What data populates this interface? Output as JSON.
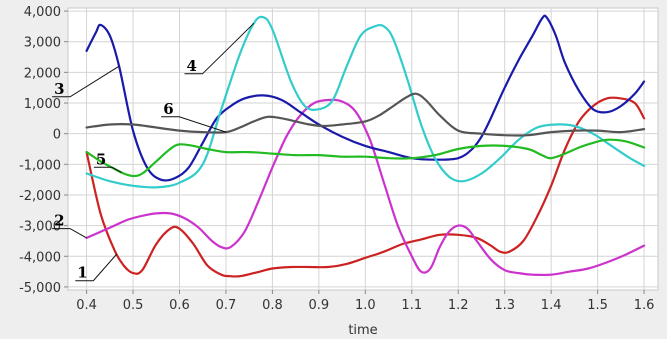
{
  "chart_data": {
    "type": "line",
    "title": "",
    "xlabel": "time",
    "ylabel": "",
    "xlim": [
      0.36,
      1.63
    ],
    "ylim": [
      -5100,
      4100
    ],
    "grid": true,
    "x_ticks": [
      "0.4",
      "0.5",
      "0.6",
      "0.7",
      "0.8",
      "0.9",
      "1.0",
      "1.1",
      "1.2",
      "1.3",
      "1.4",
      "1.5",
      "1.6"
    ],
    "y_ticks": [
      "4,000",
      "3,000",
      "2,000",
      "1,000",
      "0",
      "-1,000",
      "-2,000",
      "-3,000",
      "-4,000",
      "-5,000"
    ],
    "series": [
      {
        "name": "1",
        "color": "#cc2222",
        "x": [
          0.4,
          0.43,
          0.46,
          0.48,
          0.5,
          0.52,
          0.55,
          0.58,
          0.6,
          0.63,
          0.66,
          0.69,
          0.71,
          0.73,
          0.76,
          0.8,
          0.84,
          0.88,
          0.92,
          0.96,
          1.0,
          1.04,
          1.08,
          1.12,
          1.16,
          1.2,
          1.24,
          1.27,
          1.29,
          1.31,
          1.34,
          1.37,
          1.4,
          1.43,
          1.46,
          1.49,
          1.52,
          1.55,
          1.58,
          1.6
        ],
        "y": [
          -600,
          -2600,
          -3800,
          -4300,
          -4550,
          -4450,
          -3600,
          -3100,
          -3100,
          -3600,
          -4300,
          -4600,
          -4650,
          -4650,
          -4550,
          -4400,
          -4350,
          -4350,
          -4350,
          -4250,
          -4050,
          -3850,
          -3600,
          -3450,
          -3300,
          -3300,
          -3400,
          -3650,
          -3850,
          -3850,
          -3500,
          -2700,
          -1700,
          -500,
          400,
          900,
          1150,
          1150,
          1000,
          500
        ]
      },
      {
        "name": "2",
        "color": "#cc33cc",
        "x": [
          0.4,
          0.43,
          0.46,
          0.49,
          0.52,
          0.55,
          0.58,
          0.61,
          0.64,
          0.67,
          0.69,
          0.71,
          0.74,
          0.77,
          0.8,
          0.83,
          0.86,
          0.89,
          0.92,
          0.95,
          0.98,
          1.01,
          1.04,
          1.07,
          1.1,
          1.12,
          1.14,
          1.16,
          1.18,
          1.2,
          1.22,
          1.24,
          1.27,
          1.3,
          1.33,
          1.36,
          1.4,
          1.44,
          1.48,
          1.52,
          1.56,
          1.6
        ],
        "y": [
          -3400,
          -3200,
          -3000,
          -2800,
          -2680,
          -2600,
          -2600,
          -2750,
          -3050,
          -3500,
          -3700,
          -3700,
          -3200,
          -2200,
          -1100,
          -100,
          600,
          1000,
          1100,
          1050,
          700,
          -200,
          -1600,
          -3000,
          -4000,
          -4500,
          -4400,
          -3700,
          -3200,
          -3000,
          -3100,
          -3500,
          -4100,
          -4450,
          -4550,
          -4600,
          -4600,
          -4500,
          -4400,
          -4200,
          -3950,
          -3650
        ]
      },
      {
        "name": "3",
        "color": "#1a1aaa",
        "x": [
          0.4,
          0.42,
          0.43,
          0.45,
          0.47,
          0.5,
          0.53,
          0.56,
          0.59,
          0.62,
          0.65,
          0.68,
          0.71,
          0.74,
          0.78,
          0.82,
          0.86,
          0.9,
          0.95,
          1.0,
          1.05,
          1.1,
          1.15,
          1.2,
          1.23,
          1.25,
          1.27,
          1.3,
          1.33,
          1.36,
          1.38,
          1.39,
          1.41,
          1.43,
          1.46,
          1.49,
          1.52,
          1.55,
          1.58,
          1.6
        ],
        "y": [
          2700,
          3300,
          3550,
          3200,
          2200,
          100,
          -1100,
          -1500,
          -1450,
          -1100,
          -300,
          500,
          900,
          1150,
          1250,
          1100,
          700,
          300,
          -100,
          -400,
          -600,
          -800,
          -850,
          -800,
          -500,
          -100,
          500,
          1500,
          2400,
          3200,
          3750,
          3800,
          3200,
          2300,
          1400,
          800,
          700,
          900,
          1300,
          1700
        ]
      },
      {
        "name": "4",
        "color": "#33cccc",
        "x": [
          0.4,
          0.45,
          0.5,
          0.55,
          0.6,
          0.65,
          0.69,
          0.73,
          0.76,
          0.78,
          0.8,
          0.84,
          0.87,
          0.9,
          0.93,
          0.96,
          0.99,
          1.02,
          1.04,
          1.06,
          1.09,
          1.12,
          1.15,
          1.18,
          1.21,
          1.25,
          1.29,
          1.33,
          1.37,
          1.41,
          1.45,
          1.49,
          1.53,
          1.57,
          1.6
        ],
        "y": [
          -1300,
          -1550,
          -1700,
          -1750,
          -1600,
          -1000,
          800,
          2600,
          3600,
          3800,
          3400,
          1700,
          900,
          800,
          1100,
          2200,
          3200,
          3500,
          3500,
          3100,
          1800,
          300,
          -800,
          -1400,
          -1550,
          -1300,
          -800,
          -200,
          200,
          300,
          250,
          0,
          -400,
          -800,
          -1050
        ]
      },
      {
        "name": "5",
        "color": "#22bb22",
        "x": [
          0.4,
          0.43,
          0.46,
          0.48,
          0.5,
          0.52,
          0.55,
          0.58,
          0.6,
          0.63,
          0.66,
          0.7,
          0.75,
          0.8,
          0.85,
          0.9,
          0.95,
          1.0,
          1.05,
          1.1,
          1.15,
          1.2,
          1.25,
          1.3,
          1.35,
          1.38,
          1.4,
          1.43,
          1.46,
          1.49,
          1.52,
          1.56,
          1.6
        ],
        "y": [
          -600,
          -900,
          -1150,
          -1300,
          -1380,
          -1300,
          -900,
          -500,
          -350,
          -400,
          -500,
          -600,
          -600,
          -650,
          -700,
          -700,
          -750,
          -750,
          -800,
          -800,
          -700,
          -500,
          -400,
          -400,
          -500,
          -700,
          -800,
          -650,
          -450,
          -300,
          -200,
          -250,
          -450
        ]
      },
      {
        "name": "6",
        "color": "#555555",
        "x": [
          0.4,
          0.45,
          0.5,
          0.55,
          0.6,
          0.65,
          0.7,
          0.73,
          0.76,
          0.79,
          0.82,
          0.85,
          0.88,
          0.91,
          0.95,
          1.0,
          1.03,
          1.06,
          1.09,
          1.11,
          1.13,
          1.16,
          1.2,
          1.25,
          1.3,
          1.35,
          1.4,
          1.45,
          1.5,
          1.55,
          1.6
        ],
        "y": [
          200,
          300,
          300,
          200,
          100,
          50,
          50,
          200,
          400,
          550,
          500,
          400,
          300,
          250,
          300,
          400,
          600,
          900,
          1200,
          1300,
          1100,
          600,
          100,
          0,
          -50,
          -50,
          50,
          100,
          100,
          50,
          150
        ]
      }
    ],
    "callouts": [
      {
        "label": "1",
        "series": 0,
        "at_x": 0.465,
        "text_x": 0.38,
        "text_y": -4700
      },
      {
        "label": "2",
        "series": 1,
        "at_x": 0.4,
        "text_x": 0.33,
        "text_y": -3000
      },
      {
        "label": "3",
        "series": 2,
        "at_x": 0.47,
        "text_x": 0.33,
        "text_y": 1300
      },
      {
        "label": "4",
        "series": 3,
        "at_x": 0.76,
        "text_x": 0.615,
        "text_y": 2050
      },
      {
        "label": "5",
        "series": 4,
        "at_x": 0.475,
        "text_x": 0.42,
        "text_y": -1000
      },
      {
        "label": "6",
        "series": 5,
        "at_x": 0.7,
        "text_x": 0.565,
        "text_y": 650
      }
    ]
  }
}
